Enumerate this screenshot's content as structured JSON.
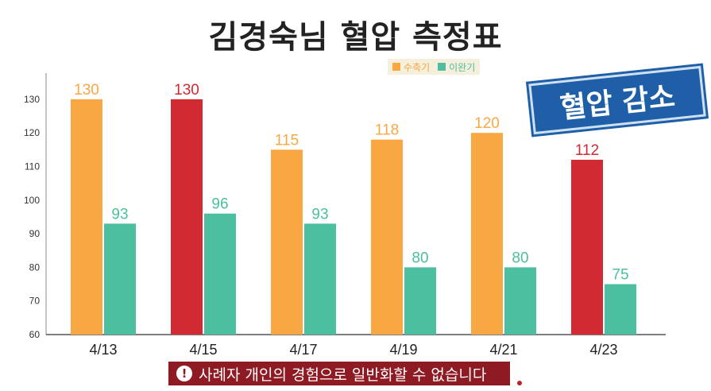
{
  "title": "김경숙님 혈압 측정표",
  "stamp_text": "혈압 감소",
  "notice_text": "사례자 개인의 경험으로 일반화할 수 없습니다",
  "colors": {
    "systolic": "#f9a743",
    "diastolic": "#4bbf9f",
    "highlight": "#d12a33",
    "notice": "#8e1b23",
    "stamp": "#1f5fa8"
  },
  "chart_data": {
    "type": "bar",
    "title": "김경숙님 혈압 측정표",
    "categories": [
      "4/13",
      "4/15",
      "4/17",
      "4/19",
      "4/21",
      "4/23"
    ],
    "series": [
      {
        "name": "수축기",
        "values": [
          130,
          130,
          115,
          118,
          120,
          112
        ],
        "highlight": [
          false,
          true,
          false,
          false,
          false,
          true
        ]
      },
      {
        "name": "이완기",
        "values": [
          93,
          96,
          93,
          80,
          80,
          75
        ]
      }
    ],
    "yticks": [
      60,
      70,
      80,
      90,
      100,
      110,
      120,
      130
    ],
    "ylim": [
      60,
      135
    ],
    "xlabel": "",
    "ylabel": "",
    "legend": "top-right",
    "grid": false
  }
}
